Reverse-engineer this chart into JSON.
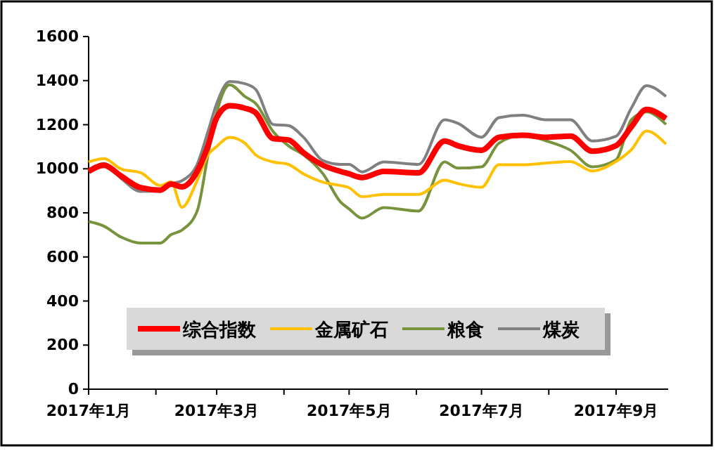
{
  "chart_data": {
    "type": "line",
    "x": [
      "2017-01-01",
      "2017-01-08",
      "2017-01-16",
      "2017-01-25",
      "2017-02-03",
      "2017-02-08",
      "2017-02-13",
      "2017-02-20",
      "2017-02-25",
      "2017-03-01",
      "2017-03-07",
      "2017-03-14",
      "2017-03-19",
      "2017-03-27",
      "2017-04-03",
      "2017-04-10",
      "2017-04-19",
      "2017-04-27",
      "2017-05-01",
      "2017-05-07",
      "2017-05-17",
      "2017-06-02",
      "2017-06-14",
      "2017-06-20",
      "2017-07-01",
      "2017-07-09",
      "2017-07-20",
      "2017-07-31",
      "2017-08-11",
      "2017-08-21",
      "2017-09-01",
      "2017-09-08",
      "2017-09-15",
      "2017-09-24"
    ],
    "series": [
      {
        "name": "综合指数",
        "color": "#ff0000",
        "values": [
          988,
          1016,
          967,
          914,
          903,
          931,
          918,
          988,
          1105,
          1232,
          1286,
          1275,
          1254,
          1137,
          1131,
          1073,
          1016,
          988,
          977,
          960,
          988,
          982,
          1126,
          1105,
          1084,
          1143,
          1152,
          1143,
          1148,
          1080,
          1105,
          1190,
          1269,
          1228
        ]
      },
      {
        "name": "金属矿石",
        "color": "#ffc000",
        "values": [
          1031,
          1046,
          999,
          982,
          924,
          941,
          825,
          946,
          1063,
          1101,
          1143,
          1116,
          1063,
          1031,
          1020,
          977,
          939,
          924,
          914,
          873,
          884,
          884,
          948,
          933,
          916,
          1018,
          1018,
          1026,
          1033,
          990,
          1033,
          1086,
          1171,
          1112
        ]
      },
      {
        "name": "粮食",
        "color": "#77933c",
        "values": [
          761,
          740,
          690,
          663,
          663,
          701,
          722,
          808,
          1063,
          1254,
          1381,
          1328,
          1296,
          1169,
          1105,
          1063,
          977,
          850,
          818,
          776,
          824,
          808,
          1031,
          1003,
          1009,
          1116,
          1152,
          1126,
          1084,
          1009,
          1041,
          1222,
          1258,
          1201
        ]
      },
      {
        "name": "煤炭",
        "color": "#808080",
        "values": [
          988,
          1024,
          956,
          897,
          903,
          931,
          946,
          1020,
          1169,
          1296,
          1396,
          1386,
          1360,
          1201,
          1196,
          1143,
          1037,
          1020,
          1020,
          986,
          1031,
          1020,
          1222,
          1207,
          1143,
          1232,
          1243,
          1222,
          1222,
          1126,
          1148,
          1275,
          1377,
          1328
        ]
      }
    ],
    "xlim": [
      "2017-01-01",
      "2017-09-25"
    ],
    "xticks": [
      {
        "value": "2017-01",
        "label": "2017年1月"
      },
      {
        "value": "2017-02",
        "label": null
      },
      {
        "value": "2017-03",
        "label": "2017年3月"
      },
      {
        "value": "2017-04",
        "label": null
      },
      {
        "value": "2017-05",
        "label": "2017年5月"
      },
      {
        "value": "2017-06",
        "label": null
      },
      {
        "value": "2017-07",
        "label": "2017年7月"
      },
      {
        "value": "2017-08",
        "label": null
      },
      {
        "value": "2017-09",
        "label": "2017年9月"
      }
    ],
    "ylim": [
      0,
      1600
    ],
    "yticks": [
      0,
      200,
      400,
      600,
      800,
      1000,
      1200,
      1400,
      1600
    ],
    "grid": false,
    "legend": "bottom",
    "marker": "none",
    "line_style": "solid"
  }
}
